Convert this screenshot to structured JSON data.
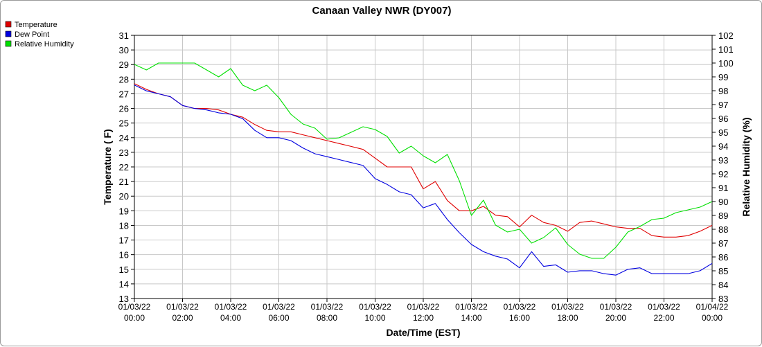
{
  "chart_data": {
    "type": "line",
    "title": "Canaan Valley NWR (DY007)",
    "xlabel": "Date/Time (EST)",
    "ylabel": "Temperature ( F)",
    "y2label": "Relative Humidity (%)",
    "ylim": [
      13,
      31
    ],
    "y2lim": [
      83,
      102
    ],
    "grid": true,
    "legend_position": "top-left",
    "x_ticks": [
      {
        "date": "01/03/22",
        "time": "00:00"
      },
      {
        "date": "01/03/22",
        "time": "02:00"
      },
      {
        "date": "01/03/22",
        "time": "04:00"
      },
      {
        "date": "01/03/22",
        "time": "06:00"
      },
      {
        "date": "01/03/22",
        "time": "08:00"
      },
      {
        "date": "01/03/22",
        "time": "10:00"
      },
      {
        "date": "01/03/22",
        "time": "12:00"
      },
      {
        "date": "01/03/22",
        "time": "14:00"
      },
      {
        "date": "01/03/22",
        "time": "16:00"
      },
      {
        "date": "01/03/22",
        "time": "18:00"
      },
      {
        "date": "01/03/22",
        "time": "20:00"
      },
      {
        "date": "01/03/22",
        "time": "22:00"
      },
      {
        "date": "01/04/22",
        "time": "00:00"
      }
    ],
    "x_hours": [
      0,
      0.5,
      1,
      1.5,
      2,
      2.5,
      3,
      3.5,
      4,
      4.5,
      5,
      5.5,
      6,
      6.5,
      7,
      7.5,
      8,
      8.5,
      9,
      9.5,
      10,
      10.5,
      11,
      11.5,
      12,
      12.5,
      13,
      13.5,
      14,
      14.5,
      15,
      15.5,
      16,
      16.5,
      17,
      17.5,
      18,
      18.5,
      19,
      19.5,
      20,
      20.5,
      21,
      21.5,
      22,
      22.5,
      23,
      23.5,
      24
    ],
    "series": [
      {
        "name": "Temperature",
        "color": "#e00000",
        "axis": "left",
        "values": [
          27.7,
          27.3,
          27.0,
          26.8,
          26.2,
          26.0,
          26.0,
          25.9,
          25.6,
          25.4,
          24.9,
          24.5,
          24.4,
          24.4,
          24.2,
          24.0,
          23.8,
          23.6,
          23.4,
          23.2,
          22.6,
          22.0,
          22.0,
          22.0,
          20.5,
          21.0,
          19.7,
          19.0,
          19.0,
          19.3,
          18.7,
          18.6,
          17.9,
          18.7,
          18.2,
          18.0,
          17.6,
          18.2,
          18.3,
          18.1,
          17.9,
          17.8,
          17.8,
          17.3,
          17.2,
          17.2,
          17.3,
          17.6,
          18.0
        ]
      },
      {
        "name": "Dew Point",
        "color": "#0000e0",
        "axis": "left",
        "values": [
          27.6,
          27.2,
          27.0,
          26.8,
          26.2,
          26.0,
          25.9,
          25.7,
          25.6,
          25.3,
          24.5,
          24.0,
          24.0,
          23.8,
          23.3,
          22.9,
          22.7,
          22.5,
          22.3,
          22.1,
          21.2,
          20.8,
          20.3,
          20.1,
          19.2,
          19.5,
          18.4,
          17.5,
          16.7,
          16.2,
          15.9,
          15.7,
          15.1,
          16.2,
          15.2,
          15.3,
          14.8,
          14.9,
          14.9,
          14.7,
          14.6,
          15.0,
          15.1,
          14.7,
          14.7,
          14.7,
          14.7,
          14.9,
          15.4
        ]
      },
      {
        "name": "Relative Humidity",
        "color": "#00e000",
        "axis": "right",
        "values": [
          99.9,
          99.5,
          100.0,
          100.0,
          100.0,
          100.0,
          99.5,
          99.0,
          99.6,
          98.4,
          98.0,
          98.4,
          97.5,
          96.3,
          95.6,
          95.3,
          94.5,
          94.6,
          95.0,
          95.4,
          95.2,
          94.7,
          93.5,
          94.0,
          93.3,
          92.8,
          93.4,
          91.5,
          89.0,
          90.1,
          88.3,
          87.8,
          88.0,
          87.0,
          87.4,
          88.1,
          86.9,
          86.2,
          85.9,
          85.9,
          86.7,
          87.8,
          88.2,
          88.7,
          88.8,
          89.2,
          89.4,
          89.6,
          90.0
        ]
      }
    ]
  }
}
